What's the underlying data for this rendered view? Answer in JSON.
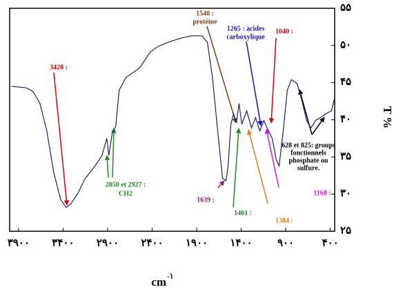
{
  "chart_data": {
    "type": "line",
    "x_label": "cm",
    "x_label_sup": "-۱",
    "y_label": "T %",
    "xlim": [
      4000,
      350
    ],
    "ylim": [
      25,
      55
    ],
    "xticks": [
      {
        "value": 3900,
        "label": "۳۹۰۰"
      },
      {
        "value": 3400,
        "label": "۳۴۰۰"
      },
      {
        "value": 2900,
        "label": "۲۹۰۰"
      },
      {
        "value": 2400,
        "label": "۲۴۰۰"
      },
      {
        "value": 1900,
        "label": "۱۹۰۰"
      },
      {
        "value": 1400,
        "label": "۱۴۰۰"
      },
      {
        "value": 900,
        "label": "۹۰۰"
      },
      {
        "value": 400,
        "label": "۴۰۰"
      }
    ],
    "yticks": [
      {
        "value": 25,
        "label": "۲۵"
      },
      {
        "value": 30,
        "label": "۳۰"
      },
      {
        "value": 35,
        "label": "۳۵"
      },
      {
        "value": 40,
        "label": "۴۰"
      },
      {
        "value": 45,
        "label": "۴۵"
      },
      {
        "value": 50,
        "label": "۵۰"
      },
      {
        "value": 55,
        "label": "۵۵"
      }
    ],
    "grid": false,
    "series": [
      {
        "color": "#1a1a80",
        "x": [
          3977,
          3815,
          3737,
          3660,
          3583,
          3505,
          3428,
          3366,
          3312,
          3234,
          3157,
          3041,
          2963,
          2909,
          2886,
          2847,
          2809,
          2770,
          2693,
          2538,
          2422,
          2344,
          2228,
          2073,
          1957,
          1841,
          1779,
          1725,
          1686,
          1648,
          1609,
          1570,
          1547,
          1516,
          1485,
          1454,
          1424,
          1393,
          1338,
          1284,
          1238,
          1191,
          1145,
          1098,
          1052,
          1005,
          974,
          928,
          882,
          835,
          773,
          719,
          665,
          618,
          564,
          510,
          448,
          386,
          350
        ],
        "values": [
          44.5,
          44.3,
          43.8,
          42.2,
          38.5,
          32.9,
          29.3,
          28.2,
          28.7,
          30.1,
          32.0,
          33.8,
          35.2,
          37.5,
          35.2,
          38.3,
          39.1,
          44.0,
          45.7,
          47.0,
          49.1,
          49.8,
          50.4,
          51.0,
          51.3,
          51.3,
          50.4,
          45.9,
          41.2,
          36.6,
          32.1,
          31.8,
          33.8,
          39.4,
          40.8,
          39.6,
          42.2,
          39.4,
          41.2,
          38.9,
          40.3,
          38.5,
          39.9,
          38.6,
          37.5,
          34.6,
          33.8,
          38.5,
          44.0,
          45.4,
          44.9,
          42.6,
          39.9,
          38.9,
          39.9,
          40.3,
          40.8,
          41.2,
          43.0
        ]
      }
    ],
    "annotations": [
      [
        "3420 :"
      ],
      [
        "2850 et 2927 :",
        "CH2"
      ],
      [
        "1639 :"
      ],
      [
        "1540 :",
        "protéine"
      ],
      [
        "1265 : acides",
        "carboxylique"
      ],
      [
        "1040 :"
      ],
      [
        "1461 :"
      ],
      [
        "1384 :"
      ],
      [
        "1168 :"
      ],
      [
        "628 et 825: groups",
        "fonctionnels",
        "phosphate ou",
        "sulfure."
      ]
    ]
  }
}
